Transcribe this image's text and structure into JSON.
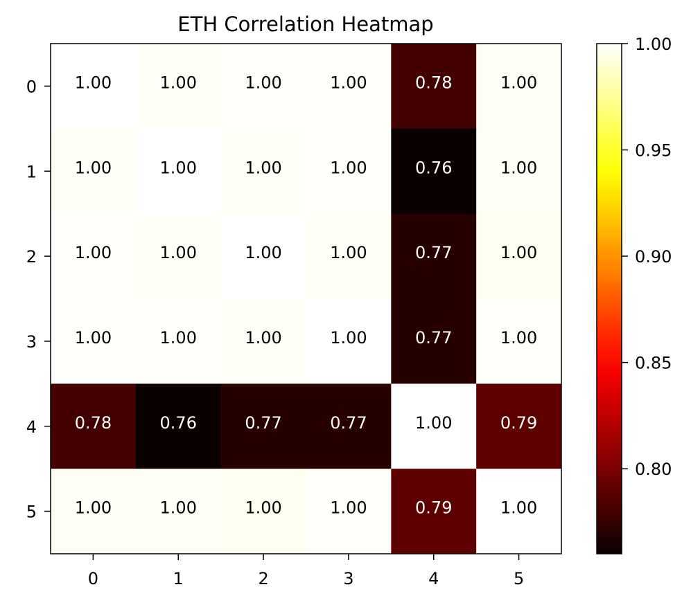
{
  "chart_data": {
    "type": "heatmap",
    "title": "ETH Correlation Heatmap",
    "x_categories": [
      "0",
      "1",
      "2",
      "3",
      "4",
      "5"
    ],
    "y_categories": [
      "0",
      "1",
      "2",
      "3",
      "4",
      "5"
    ],
    "values": [
      [
        1.0,
        0.998,
        0.999,
        0.999,
        0.78,
        0.998
      ],
      [
        0.998,
        1.0,
        0.998,
        0.999,
        0.76,
        0.998
      ],
      [
        0.999,
        0.998,
        1.0,
        0.998,
        0.77,
        0.997
      ],
      [
        0.999,
        0.999,
        0.998,
        1.0,
        0.77,
        0.999
      ],
      [
        0.78,
        0.76,
        0.77,
        0.77,
        1.0,
        0.79
      ],
      [
        0.998,
        0.998,
        0.997,
        0.999,
        0.79,
        1.0
      ]
    ],
    "cell_labels": [
      [
        "1.00",
        "1.00",
        "1.00",
        "1.00",
        "0.78",
        "1.00"
      ],
      [
        "1.00",
        "1.00",
        "1.00",
        "1.00",
        "0.76",
        "1.00"
      ],
      [
        "1.00",
        "1.00",
        "1.00",
        "1.00",
        "0.77",
        "1.00"
      ],
      [
        "1.00",
        "1.00",
        "1.00",
        "1.00",
        "0.77",
        "1.00"
      ],
      [
        "0.78",
        "0.76",
        "0.77",
        "0.77",
        "1.00",
        "0.79"
      ],
      [
        "1.00",
        "1.00",
        "1.00",
        "1.00",
        "0.79",
        "1.00"
      ]
    ],
    "colormap": "hot",
    "colorbar": {
      "range": [
        0.76,
        1.0
      ],
      "ticks": [
        0.8,
        0.85,
        0.9,
        0.95,
        1.0
      ],
      "tick_labels": [
        "0.80",
        "0.85",
        "0.90",
        "0.95",
        "1.00"
      ]
    },
    "dark_text_color": "#000000",
    "light_text_color": "#ffffff"
  }
}
